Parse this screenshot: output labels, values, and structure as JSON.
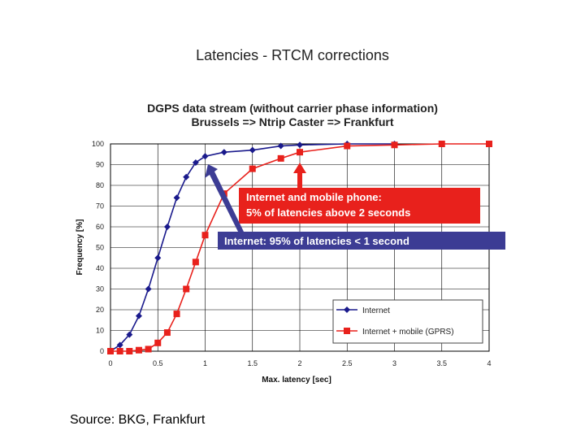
{
  "page": {
    "title": "Latencies - RTCM corrections",
    "subtitle_line1": "DGPS data stream (without carrier phase information)",
    "subtitle_line2": "Brussels => Ntrip Caster => Frankfurt",
    "source": "Source: BKG, Frankfurt"
  },
  "callouts": {
    "red_line1": "Internet and mobile phone:",
    "red_line2": "5% of latencies above 2 seconds",
    "blue_text": "Internet: 95% of latencies < 1 second"
  },
  "colors": {
    "internet": "#1a1a8c",
    "mobile": "#e8211c",
    "red_box": "#e8211c",
    "blue_box": "#3c3c94"
  },
  "chart_data": {
    "type": "line",
    "xlabel": "Max. latency [sec]",
    "ylabel": "Frequency [%]",
    "xlim": [
      0,
      4
    ],
    "ylim": [
      0,
      100
    ],
    "xticks": [
      "0",
      "0.5",
      "1",
      "1.5",
      "2",
      "2.5",
      "3",
      "3.5",
      "4"
    ],
    "yticks": [
      "0",
      "10",
      "20",
      "30",
      "40",
      "50",
      "60",
      "70",
      "80",
      "90",
      "100"
    ],
    "grid": true,
    "legend_position": "bottom-right",
    "series": [
      {
        "name": "Internet",
        "marker": "diamond",
        "x": [
          0,
          0.1,
          0.2,
          0.3,
          0.4,
          0.5,
          0.6,
          0.7,
          0.8,
          0.9,
          1.0,
          1.2,
          1.5,
          1.8,
          2.0,
          2.5,
          3.0
        ],
        "y": [
          0,
          3,
          8,
          17,
          30,
          45,
          60,
          74,
          84,
          91,
          94,
          96,
          97,
          99,
          99.5,
          100,
          100
        ]
      },
      {
        "name": "Internet + mobile (GPRS)",
        "marker": "square",
        "x": [
          0,
          0.1,
          0.2,
          0.3,
          0.4,
          0.5,
          0.6,
          0.7,
          0.8,
          0.9,
          1.0,
          1.2,
          1.5,
          1.8,
          2.0,
          2.5,
          3.0,
          3.5,
          4.0
        ],
        "y": [
          0,
          0,
          0,
          0.5,
          1,
          4,
          9,
          18,
          30,
          43,
          56,
          76,
          88,
          93,
          96,
          99,
          99.5,
          100,
          100
        ]
      }
    ]
  }
}
